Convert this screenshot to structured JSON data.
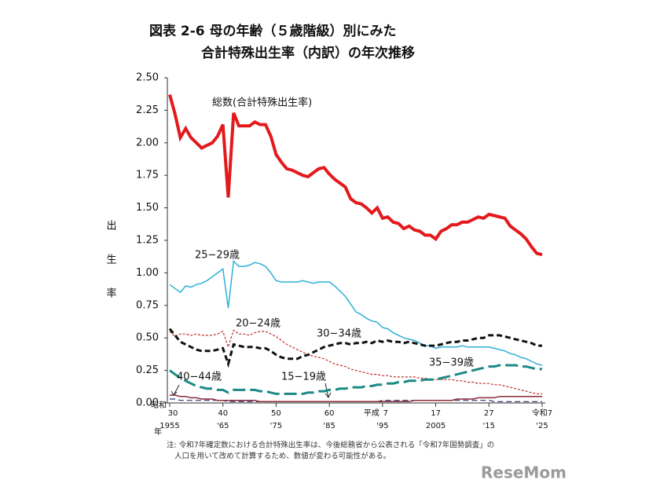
{
  "chart_data": {
    "type": "line",
    "title": "図表 2-6 母の年齢（５歳階級）別にみた",
    "subtitle": "合計特殊出生率（内訳）の年次推移",
    "y_label": "出生率",
    "x_label": "年",
    "x": [
      1955,
      1956,
      1957,
      1958,
      1959,
      1960,
      1961,
      1962,
      1963,
      1964,
      1965,
      1966,
      1967,
      1968,
      1969,
      1970,
      1971,
      1972,
      1973,
      1974,
      1975,
      1976,
      1977,
      1978,
      1979,
      1980,
      1981,
      1982,
      1983,
      1984,
      1985,
      1986,
      1987,
      1988,
      1989,
      1990,
      1991,
      1992,
      1993,
      1994,
      1995,
      1996,
      1997,
      1998,
      1999,
      2000,
      2001,
      2002,
      2003,
      2004,
      2005,
      2006,
      2007,
      2008,
      2009,
      2010,
      2011,
      2012,
      2013,
      2014,
      2015,
      2016,
      2017,
      2018,
      2019,
      2020,
      2021,
      2022,
      2023,
      2024,
      2025
    ],
    "series": [
      {
        "name": "総数(合計特殊出生率)",
        "color": "#e3191c",
        "dash": "solid",
        "values": [
          2.37,
          2.22,
          2.04,
          2.11,
          2.04,
          2.0,
          1.96,
          1.98,
          2.0,
          2.05,
          2.14,
          1.58,
          2.23,
          2.13,
          2.13,
          2.13,
          2.16,
          2.14,
          2.14,
          2.05,
          1.91,
          1.85,
          1.8,
          1.79,
          1.77,
          1.75,
          1.74,
          1.77,
          1.8,
          1.81,
          1.76,
          1.72,
          1.69,
          1.66,
          1.57,
          1.54,
          1.53,
          1.5,
          1.46,
          1.5,
          1.42,
          1.43,
          1.39,
          1.38,
          1.34,
          1.36,
          1.33,
          1.32,
          1.29,
          1.29,
          1.26,
          1.32,
          1.34,
          1.37,
          1.37,
          1.39,
          1.39,
          1.41,
          1.43,
          1.42,
          1.45,
          1.44,
          1.43,
          1.42,
          1.36,
          1.33,
          1.3,
          1.26,
          1.2,
          1.15,
          1.14
        ]
      },
      {
        "name": "25−29歳",
        "color": "#2eb0d6",
        "dash": "solid",
        "values": [
          0.91,
          0.88,
          0.85,
          0.9,
          0.89,
          0.91,
          0.92,
          0.94,
          0.97,
          1.0,
          1.03,
          0.73,
          1.09,
          1.05,
          1.05,
          1.06,
          1.08,
          1.07,
          1.05,
          1.0,
          0.94,
          0.93,
          0.93,
          0.93,
          0.93,
          0.94,
          0.93,
          0.92,
          0.93,
          0.93,
          0.93,
          0.9,
          0.86,
          0.82,
          0.76,
          0.7,
          0.68,
          0.65,
          0.63,
          0.62,
          0.58,
          0.57,
          0.54,
          0.52,
          0.5,
          0.49,
          0.48,
          0.46,
          0.44,
          0.44,
          0.42,
          0.43,
          0.43,
          0.43,
          0.43,
          0.44,
          0.43,
          0.43,
          0.43,
          0.43,
          0.43,
          0.42,
          0.41,
          0.4,
          0.38,
          0.37,
          0.35,
          0.34,
          0.32,
          0.3,
          0.29
        ]
      },
      {
        "name": "20−24歳",
        "color": "#c0302a",
        "dash": "dotted",
        "values": [
          0.55,
          0.51,
          0.53,
          0.53,
          0.52,
          0.53,
          0.52,
          0.52,
          0.52,
          0.53,
          0.55,
          0.43,
          0.56,
          0.53,
          0.53,
          0.52,
          0.54,
          0.55,
          0.55,
          0.53,
          0.51,
          0.48,
          0.45,
          0.43,
          0.41,
          0.39,
          0.37,
          0.36,
          0.35,
          0.34,
          0.32,
          0.3,
          0.29,
          0.28,
          0.26,
          0.25,
          0.24,
          0.23,
          0.22,
          0.22,
          0.21,
          0.21,
          0.2,
          0.2,
          0.2,
          0.2,
          0.2,
          0.19,
          0.19,
          0.18,
          0.18,
          0.18,
          0.18,
          0.18,
          0.17,
          0.17,
          0.16,
          0.16,
          0.15,
          0.15,
          0.15,
          0.14,
          0.14,
          0.13,
          0.12,
          0.11,
          0.1,
          0.09,
          0.08,
          0.07,
          0.07
        ]
      },
      {
        "name": "30−34歳",
        "color": "#111111",
        "dash": "dashed",
        "values": [
          0.57,
          0.52,
          0.47,
          0.45,
          0.43,
          0.41,
          0.4,
          0.4,
          0.4,
          0.41,
          0.42,
          0.3,
          0.45,
          0.44,
          0.43,
          0.43,
          0.43,
          0.42,
          0.42,
          0.4,
          0.37,
          0.35,
          0.34,
          0.34,
          0.34,
          0.36,
          0.37,
          0.39,
          0.41,
          0.43,
          0.44,
          0.45,
          0.46,
          0.46,
          0.45,
          0.46,
          0.46,
          0.47,
          0.46,
          0.48,
          0.47,
          0.48,
          0.47,
          0.47,
          0.46,
          0.47,
          0.46,
          0.45,
          0.44,
          0.44,
          0.44,
          0.45,
          0.46,
          0.47,
          0.47,
          0.48,
          0.48,
          0.49,
          0.5,
          0.5,
          0.52,
          0.52,
          0.52,
          0.51,
          0.5,
          0.49,
          0.48,
          0.47,
          0.46,
          0.44,
          0.44
        ]
      },
      {
        "name": "35−39歳",
        "color": "#1a8a86",
        "dash": "longdash",
        "values": [
          0.25,
          0.22,
          0.19,
          0.17,
          0.15,
          0.13,
          0.12,
          0.11,
          0.11,
          0.1,
          0.1,
          0.08,
          0.1,
          0.1,
          0.1,
          0.1,
          0.1,
          0.09,
          0.09,
          0.08,
          0.07,
          0.07,
          0.07,
          0.07,
          0.07,
          0.07,
          0.08,
          0.08,
          0.09,
          0.09,
          0.1,
          0.1,
          0.11,
          0.11,
          0.12,
          0.12,
          0.12,
          0.13,
          0.13,
          0.14,
          0.14,
          0.15,
          0.15,
          0.16,
          0.16,
          0.17,
          0.17,
          0.17,
          0.18,
          0.18,
          0.18,
          0.19,
          0.2,
          0.21,
          0.22,
          0.23,
          0.24,
          0.25,
          0.26,
          0.27,
          0.28,
          0.28,
          0.29,
          0.29,
          0.29,
          0.29,
          0.28,
          0.28,
          0.27,
          0.26,
          0.26
        ]
      },
      {
        "name": "15−19歳",
        "color": "#2a2a6a",
        "dash": "dashed",
        "values": [
          0.03,
          0.03,
          0.02,
          0.02,
          0.02,
          0.02,
          0.02,
          0.02,
          0.02,
          0.02,
          0.02,
          0.01,
          0.01,
          0.01,
          0.01,
          0.01,
          0.01,
          0.01,
          0.01,
          0.01,
          0.01,
          0.01,
          0.01,
          0.01,
          0.01,
          0.01,
          0.01,
          0.01,
          0.01,
          0.01,
          0.01,
          0.01,
          0.01,
          0.01,
          0.01,
          0.01,
          0.01,
          0.01,
          0.01,
          0.01,
          0.02,
          0.02,
          0.02,
          0.02,
          0.02,
          0.02,
          0.02,
          0.02,
          0.02,
          0.02,
          0.02,
          0.02,
          0.02,
          0.02,
          0.02,
          0.02,
          0.02,
          0.02,
          0.02,
          0.02,
          0.02,
          0.01,
          0.01,
          0.01,
          0.01,
          0.01,
          0.01,
          0.01,
          0.01,
          0.01,
          0.01
        ]
      },
      {
        "name": "40−44歳",
        "color": "#8b2a3a",
        "dash": "solid",
        "values": [
          0.06,
          0.06,
          0.05,
          0.05,
          0.04,
          0.04,
          0.03,
          0.03,
          0.03,
          0.02,
          0.02,
          0.02,
          0.02,
          0.02,
          0.02,
          0.02,
          0.02,
          0.01,
          0.01,
          0.01,
          0.01,
          0.01,
          0.01,
          0.01,
          0.01,
          0.01,
          0.01,
          0.01,
          0.01,
          0.01,
          0.01,
          0.01,
          0.01,
          0.01,
          0.01,
          0.01,
          0.01,
          0.01,
          0.01,
          0.01,
          0.01,
          0.01,
          0.01,
          0.01,
          0.01,
          0.01,
          0.02,
          0.02,
          0.02,
          0.02,
          0.02,
          0.02,
          0.02,
          0.02,
          0.03,
          0.03,
          0.03,
          0.03,
          0.04,
          0.04,
          0.04,
          0.04,
          0.05,
          0.05,
          0.05,
          0.05,
          0.05,
          0.05,
          0.05,
          0.05,
          0.05
        ]
      }
    ],
    "xlim": [
      1955,
      2025
    ],
    "xticks": [
      1955,
      {
        "value": 1965,
        "label": "'65"
      },
      {
        "value": 1975,
        "label": "'75"
      },
      {
        "value": 1985,
        "label": "'85"
      },
      {
        "value": 1995,
        "label": "'95"
      },
      2005,
      {
        "value": 2015,
        "label": "'15"
      },
      {
        "value": 2025,
        "label": "'25"
      }
    ],
    "x_era_labels": [
      {
        "era": "昭和",
        "label": "30"
      },
      {
        "label": "40"
      },
      {
        "label": "50"
      },
      {
        "label": "60"
      },
      {
        "era": "平成",
        "label": "7"
      },
      {
        "label": "17"
      },
      {
        "label": "27"
      },
      {
        "label": "令和7"
      }
    ],
    "ylim": [
      0,
      2.5
    ],
    "yticks": [
      {
        "value": 0,
        "label": "0.00"
      },
      {
        "value": 0.25,
        "label": "0.25"
      },
      {
        "value": 0.5,
        "label": "0.50"
      },
      {
        "value": 0.75,
        "label": "0.75"
      },
      {
        "value": 1,
        "label": "1.00"
      },
      {
        "value": 1.25,
        "label": "1.25"
      },
      {
        "value": 1.5,
        "label": "1.50"
      },
      {
        "value": 1.75,
        "label": "1.75"
      },
      {
        "value": 2,
        "label": "2.00"
      },
      {
        "value": 2.25,
        "label": "2.25"
      },
      {
        "value": 2.5,
        "label": "2.50"
      }
    ],
    "note": [
      "注: 令和7年確定数における合計特殊出生率は、今後総務省から公表される「令和7年国勢調査」の",
      "人口を用いて改めて計算するため、数値が変わる可能性がある。"
    ],
    "watermark": "ReseMom"
  }
}
